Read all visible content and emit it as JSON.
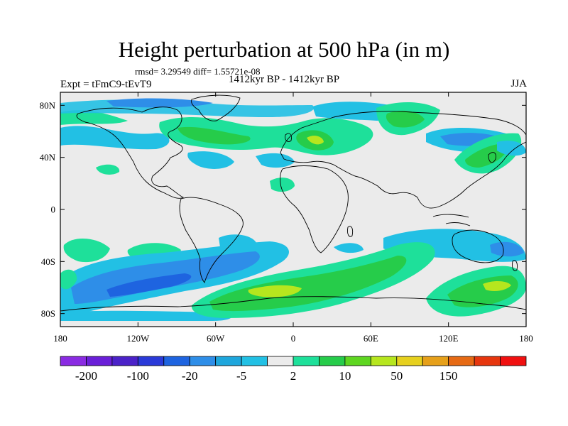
{
  "title": "Height perturbation at 500 hPa (in m)",
  "stats": "rmsd= 3.29549 diff= 1.55721e-08",
  "left_label": "Expt = tFmC9-tEvT9",
  "center_label": "1412kyr BP - 1412kyr BP",
  "right_label": "JJA",
  "map": {
    "projection": "cylindrical equidistant",
    "lon_range": [
      -180,
      180
    ],
    "lat_range": [
      -90,
      90
    ],
    "lat_ticks": [
      {
        "value": 80,
        "label": "80N"
      },
      {
        "value": 40,
        "label": "40N"
      },
      {
        "value": 0,
        "label": "0"
      },
      {
        "value": -40,
        "label": "40S"
      },
      {
        "value": -80,
        "label": "80S"
      }
    ],
    "lon_ticks": [
      {
        "value": -180,
        "label": "180"
      },
      {
        "value": -120,
        "label": "120W"
      },
      {
        "value": -60,
        "label": "60W"
      },
      {
        "value": 0,
        "label": "0"
      },
      {
        "value": 60,
        "label": "60E"
      },
      {
        "value": 120,
        "label": "120E"
      },
      {
        "value": 180,
        "label": "180"
      }
    ]
  },
  "colorbar": {
    "colors": [
      "#8a2be2",
      "#6a1fd8",
      "#4b22c8",
      "#2a3ad8",
      "#1e64e0",
      "#2e8ee8",
      "#1ea6dc",
      "#22c0e4",
      "#ebebeb",
      "#1ee09a",
      "#26cc4a",
      "#5ed620",
      "#b6e61e",
      "#e6d01e",
      "#e6a01a",
      "#e66a14",
      "#e6360e",
      "#f01010"
    ],
    "labels": [
      {
        "boundary": 1,
        "text": "-200"
      },
      {
        "boundary": 3,
        "text": "-100"
      },
      {
        "boundary": 5,
        "text": "-20"
      },
      {
        "boundary": 7,
        "text": "-5"
      },
      {
        "boundary": 9,
        "text": "2"
      },
      {
        "boundary": 11,
        "text": "10"
      },
      {
        "boundary": 13,
        "text": "50"
      },
      {
        "boundary": 15,
        "text": "150"
      }
    ]
  }
}
